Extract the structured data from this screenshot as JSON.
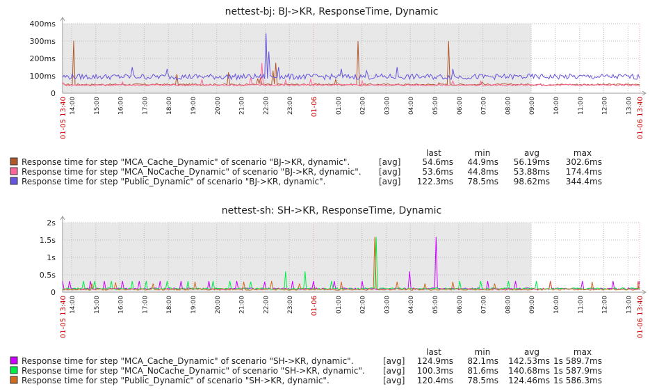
{
  "chart_data": [
    {
      "type": "line",
      "title": "nettest-bj: BJ->KR, ResponseTime, Dynamic",
      "y_tick_labels": [
        "0",
        "100ms",
        "200ms",
        "300ms",
        "400ms"
      ],
      "y_tick_values": [
        0,
        100,
        200,
        300,
        400
      ],
      "ylim": [
        0,
        400
      ],
      "unit": "ms",
      "x_start_label": "01-05 13:40",
      "x_end_label": "01-06 13:40",
      "x_day_label": "01-06",
      "x_hour_labels": [
        "14:00",
        "15:00",
        "16:00",
        "17:00",
        "18:00",
        "19:00",
        "20:00",
        "21:00",
        "22:00",
        "23:00",
        "01-06",
        "01:00",
        "02:00",
        "03:00",
        "04:00",
        "05:00",
        "06:00",
        "07:00",
        "08:00",
        "09:00",
        "10:00",
        "11:00",
        "12:00",
        "13:00"
      ],
      "shaded_until": "09:00",
      "legend_headers": [
        "last",
        "min",
        "avg",
        "max"
      ],
      "series": [
        {
          "name": "Response time for step \"MCA_Cache_Dynamic\" of scenario \"BJ->KR, dynamic\".",
          "color": "#b0582a",
          "agg": "[avg]",
          "last": "54.6ms",
          "min": "44.9ms",
          "avg": "56.19ms",
          "max": "302.6ms",
          "baseline": 50,
          "spikes": [
            [
              15,
              302
            ],
            [
              163,
              110
            ],
            [
              237,
              120
            ],
            [
              279,
              85
            ],
            [
              284,
              90
            ],
            [
              302,
              130
            ],
            [
              305,
              175
            ],
            [
              392,
              80
            ],
            [
              423,
              300
            ],
            [
              539,
              60
            ],
            [
              553,
              300
            ],
            [
              601,
              65
            ]
          ]
        },
        {
          "name": "Response time for step \"MCA_NoCache_Dynamic\" of scenario \"BJ->KR, dynamic\".",
          "color": "#ff6699",
          "agg": "[avg]",
          "last": "53.6ms",
          "min": "44.8ms",
          "avg": "53.88ms",
          "max": "174.4ms",
          "baseline": 47,
          "spikes": [
            [
              0,
              65
            ],
            [
              85,
              65
            ],
            [
              200,
              80
            ],
            [
              270,
              90
            ],
            [
              285,
              174
            ],
            [
              320,
              75
            ],
            [
              356,
              80
            ],
            [
              430,
              70
            ],
            [
              560,
              70
            ],
            [
              600,
              70
            ]
          ]
        },
        {
          "name": "Response time for step \"Public_Dynamic\" of scenario \"BJ->KR, dynamic\".",
          "color": "#6655dd",
          "agg": "[avg]",
          "last": "122.3ms",
          "min": "78.5ms",
          "avg": "98.62ms",
          "max": "344.4ms",
          "baseline": 95,
          "spikes": [
            [
              100,
              150
            ],
            [
              150,
              140
            ],
            [
              292,
              344
            ],
            [
              295,
              240
            ],
            [
              310,
              150
            ],
            [
              400,
              140
            ],
            [
              436,
              130
            ],
            [
              480,
              150
            ],
            [
              560,
              140
            ]
          ]
        }
      ]
    },
    {
      "type": "line",
      "title": "nettest-sh: SH->KR, ResponseTime, Dynamic",
      "y_tick_labels": [
        "0",
        "0.5s",
        "1s",
        "1.5s",
        "2s"
      ],
      "y_tick_values": [
        0,
        0.5,
        1,
        1.5,
        2
      ],
      "ylim": [
        0,
        2
      ],
      "unit": "s",
      "x_start_label": "01-05 13:40",
      "x_end_label": "01-06 13:40",
      "x_day_label": "01-06",
      "x_hour_labels": [
        "14:00",
        "15:00",
        "16:00",
        "17:00",
        "18:00",
        "19:00",
        "20:00",
        "21:00",
        "22:00",
        "23:00",
        "01-06",
        "01:00",
        "02:00",
        "03:00",
        "04:00",
        "05:00",
        "06:00",
        "07:00",
        "08:00",
        "09:00",
        "10:00",
        "11:00",
        "12:00",
        "13:00"
      ],
      "shaded_until": "09:00",
      "legend_headers": [
        "last",
        "min",
        "avg",
        "max"
      ],
      "series": [
        {
          "name": "Response time for step \"MCA_Cache_Dynamic\" of scenario \"SH->KR, dynamic\".",
          "color": "#cc00ff",
          "agg": "[avg]",
          "last": "124.9ms",
          "min": "82.1ms",
          "avg": "142.53ms",
          "max": "1s 589.7ms",
          "baseline": 0.1,
          "spikes": [
            [
              0,
              0.32
            ],
            [
              10,
              0.32
            ],
            [
              40,
              0.32
            ],
            [
              60,
              0.32
            ],
            [
              85,
              0.32
            ],
            [
              110,
              0.32
            ],
            [
              140,
              0.32
            ],
            [
              170,
              0.32
            ],
            [
              210,
              0.32
            ],
            [
              250,
              0.32
            ],
            [
              290,
              0.3
            ],
            [
              330,
              0.32
            ],
            [
              360,
              0.32
            ],
            [
              390,
              0.32
            ],
            [
              430,
              0.32
            ],
            [
              498,
              0.6
            ],
            [
              535,
              1.59
            ],
            [
              610,
              0.32
            ],
            [
              650,
              0.32
            ],
            [
              700,
              0.32
            ],
            [
              745,
              0.32
            ],
            [
              790,
              0.32
            ],
            [
              830,
              0.32
            ]
          ]
        },
        {
          "name": "Response time for step \"MCA_NoCache_Dynamic\" of scenario \"SH->KR, dynamic\".",
          "color": "#00ee44",
          "agg": "[avg]",
          "last": "100.3ms",
          "min": "81.6ms",
          "avg": "140.68ms",
          "max": "1s 587.9ms",
          "baseline": 0.1,
          "spikes": [
            [
              30,
              0.32
            ],
            [
              45,
              0.32
            ],
            [
              70,
              0.32
            ],
            [
              100,
              0.32
            ],
            [
              120,
              0.32
            ],
            [
              150,
              0.32
            ],
            [
              180,
              0.32
            ],
            [
              215,
              0.32
            ],
            [
              240,
              0.32
            ],
            [
              270,
              0.3
            ],
            [
              320,
              0.6
            ],
            [
              348,
              0.6
            ],
            [
              385,
              0.32
            ],
            [
              450,
              1.59
            ],
            [
              570,
              0.32
            ],
            [
              600,
              0.32
            ],
            [
              640,
              0.32
            ],
            [
              680,
              0.32
            ]
          ]
        },
        {
          "name": "Response time for step \"Public_Dynamic\" of scenario \"SH->KR, dynamic\".",
          "color": "#d2691e",
          "agg": "[avg]",
          "last": "120.4ms",
          "min": "78.5ms",
          "avg": "124.46ms",
          "max": "1s 586.3ms",
          "baseline": 0.08,
          "spikes": [
            [
              42,
              0.25
            ],
            [
              75,
              0.28
            ],
            [
              130,
              0.25
            ],
            [
              190,
              0.3
            ],
            [
              260,
              0.3
            ],
            [
              300,
              0.32
            ],
            [
              340,
              0.25
            ],
            [
              400,
              0.3
            ],
            [
              448,
              1.59
            ],
            [
              480,
              0.3
            ],
            [
              520,
              0.25
            ],
            [
              560,
              0.3
            ],
            [
              620,
              0.25
            ],
            [
              700,
              0.32
            ],
            [
              760,
              0.3
            ],
            [
              825,
              0.32
            ]
          ]
        }
      ]
    }
  ]
}
